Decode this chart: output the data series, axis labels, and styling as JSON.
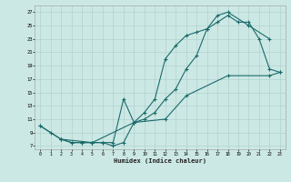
{
  "xlabel": "Humidex (Indice chaleur)",
  "bg_color": "#cce8e4",
  "grid_color": "#aacccc",
  "line_color": "#1a6b6b",
  "xlim": [
    -0.5,
    23.5
  ],
  "ylim": [
    6.5,
    28
  ],
  "xticks": [
    0,
    1,
    2,
    3,
    4,
    5,
    6,
    7,
    8,
    9,
    10,
    11,
    12,
    13,
    14,
    15,
    16,
    17,
    18,
    19,
    20,
    21,
    22,
    23
  ],
  "yticks": [
    7,
    9,
    11,
    13,
    15,
    17,
    19,
    21,
    23,
    25,
    27
  ],
  "curve1_x": [
    0,
    1,
    2,
    3,
    4,
    5,
    6,
    7,
    8,
    9,
    10,
    11,
    12,
    13,
    14,
    15,
    16,
    17,
    18,
    20,
    22
  ],
  "curve1_y": [
    10,
    9,
    8,
    7.5,
    7.5,
    7.5,
    7.5,
    7,
    7.5,
    10.5,
    12,
    14,
    20,
    22,
    23.5,
    24,
    24.5,
    26.5,
    27,
    25,
    23
  ],
  "curve2_x": [
    2,
    3,
    4,
    5,
    6,
    7,
    8,
    9,
    10,
    11,
    12,
    13,
    14,
    15,
    16,
    17,
    18,
    19,
    20,
    21,
    22,
    23
  ],
  "curve2_y": [
    8,
    7.5,
    7.5,
    7.5,
    7.5,
    7.5,
    14,
    10.5,
    11,
    12,
    14,
    15.5,
    18.5,
    20.5,
    24.5,
    25.5,
    26.5,
    25.5,
    25.5,
    23,
    18.5,
    18
  ],
  "curve3_x": [
    0,
    2,
    5,
    9,
    12,
    14,
    18,
    22,
    23
  ],
  "curve3_y": [
    10,
    8,
    7.5,
    10.5,
    11,
    14.5,
    17.5,
    17.5,
    18
  ]
}
